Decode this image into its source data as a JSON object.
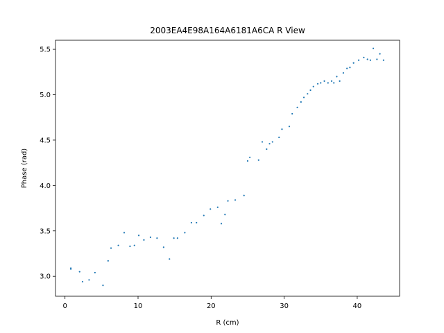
{
  "chart_data": {
    "type": "scatter",
    "title": "2003EA4E98A164A6181A6CA R View",
    "xlabel": "R (cm)",
    "ylabel": "Phase (rad)",
    "xlim": [
      -1.3,
      45.8
    ],
    "ylim": [
      2.78,
      5.6
    ],
    "xticks": [
      0,
      10,
      20,
      30,
      40
    ],
    "xtick_labels": [
      "0",
      "10",
      "20",
      "30",
      "40"
    ],
    "yticks": [
      3.0,
      3.5,
      4.0,
      4.5,
      5.0,
      5.5
    ],
    "ytick_labels": [
      "3.0",
      "3.5",
      "4.0",
      "4.5",
      "5.0",
      "5.5"
    ],
    "grid": false,
    "marker_color": "#1f77b4",
    "series": [
      {
        "x": [
          0.8,
          0.8,
          2.0,
          2.4,
          3.3,
          4.1,
          5.2,
          5.9,
          6.3,
          7.3,
          8.1,
          8.9,
          9.5,
          10.1,
          10.8,
          11.7,
          12.6,
          13.5,
          14.3,
          14.9,
          15.4,
          16.4,
          17.3,
          18.0,
          19.0,
          19.9,
          20.9,
          21.4,
          21.9,
          22.3,
          23.3,
          24.5,
          25.0,
          25.3,
          26.5,
          27.0,
          27.6,
          28.0,
          28.4,
          29.3,
          29.7,
          30.7,
          31.1,
          31.8,
          32.3,
          32.7,
          33.2,
          33.6,
          34.0,
          34.6,
          35.0,
          35.5,
          36.0,
          36.5,
          36.8,
          37.2,
          37.6,
          38.1,
          38.6,
          39.0,
          39.5,
          40.2,
          40.9,
          41.4,
          41.8,
          42.2,
          42.7,
          43.1,
          43.6
        ],
        "y": [
          3.09,
          3.08,
          3.05,
          2.94,
          2.96,
          3.04,
          2.9,
          3.17,
          3.31,
          3.34,
          3.48,
          3.33,
          3.34,
          3.45,
          3.4,
          3.43,
          3.42,
          3.32,
          3.19,
          3.42,
          3.42,
          3.48,
          3.59,
          3.59,
          3.67,
          3.74,
          3.76,
          3.58,
          3.68,
          3.83,
          3.84,
          3.89,
          4.27,
          4.31,
          4.28,
          4.48,
          4.4,
          4.46,
          4.48,
          4.53,
          4.62,
          4.65,
          4.79,
          4.86,
          4.92,
          4.97,
          5.01,
          5.05,
          5.09,
          5.12,
          5.13,
          5.15,
          5.13,
          5.15,
          5.13,
          5.2,
          5.15,
          5.24,
          5.29,
          5.3,
          5.35,
          5.38,
          5.41,
          5.39,
          5.38,
          5.51,
          5.39,
          5.45,
          5.38
        ]
      }
    ]
  }
}
